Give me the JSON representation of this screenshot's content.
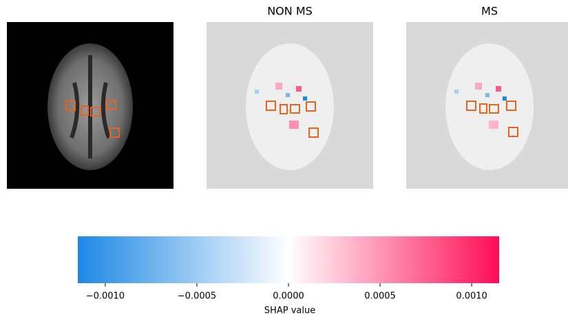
{
  "chart_data": {
    "type": "colorbar",
    "panel_titles": [
      "NON MS",
      "MS"
    ],
    "label": "SHAP value",
    "colors": [
      "#1e88e5",
      "#ffffff",
      "#ff0d57"
    ],
    "xlim": [
      -0.00115,
      0.00115
    ],
    "xticks": [
      {
        "value": -0.001,
        "label": "−0.0010"
      },
      {
        "value": -0.0005,
        "label": "−0.0005"
      },
      {
        "value": 0,
        "label": "0.0000"
      },
      {
        "value": 0.0005,
        "label": "0.0005"
      },
      {
        "value": 0.001,
        "label": "0.0010"
      }
    ]
  }
}
